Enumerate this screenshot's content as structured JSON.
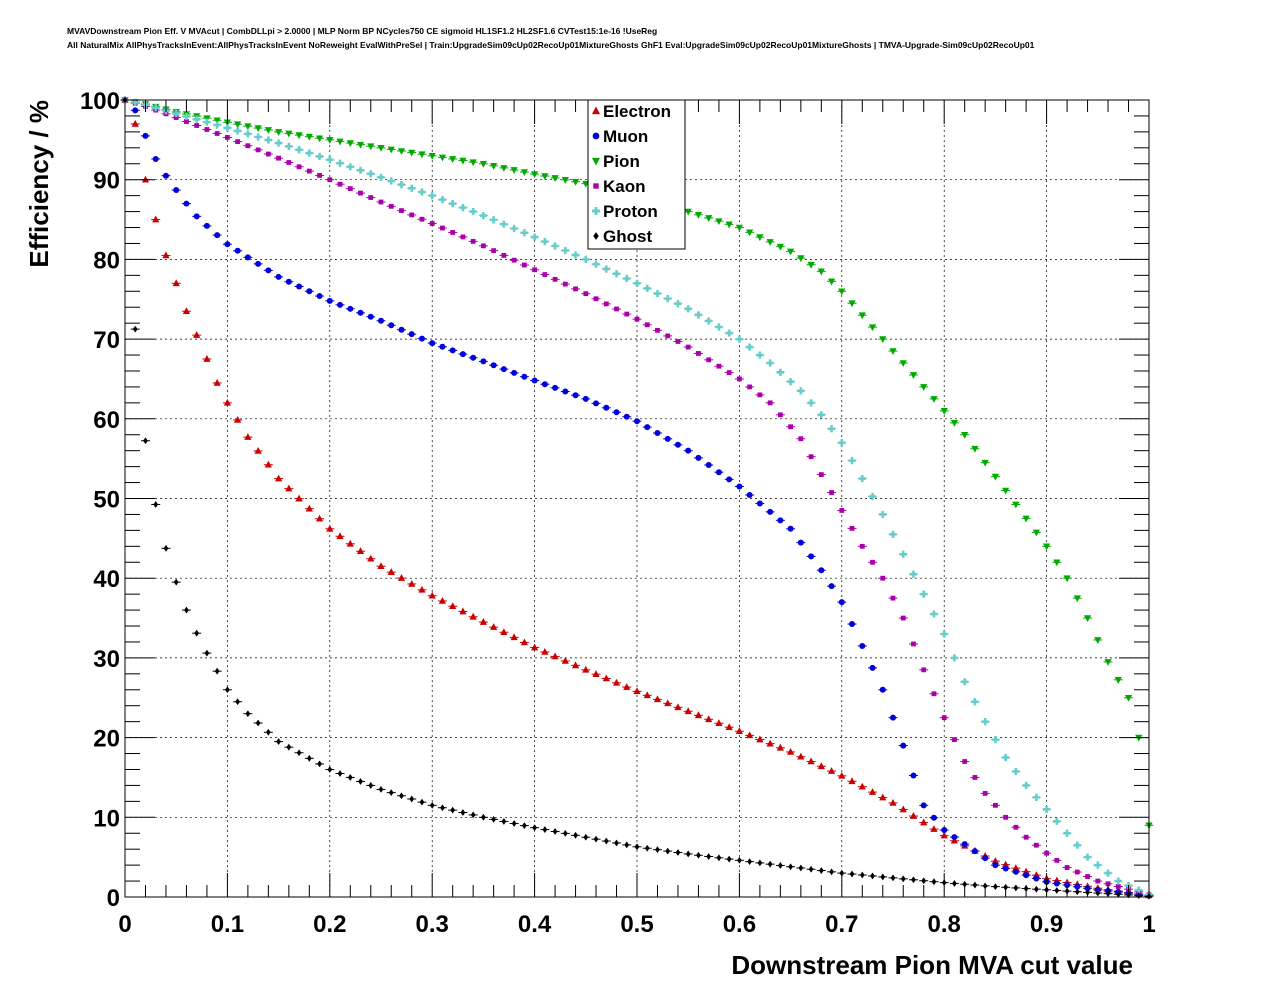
{
  "chart_data": {
    "type": "scatter",
    "header_line1": "MVAVDownstream Pion Eff. V MVAcut | CombDLLpi > 2.0000 | MLP Norm BP NCycles750 CE sigmoid HL1SF1.2 HL2SF1.6 CVTest15:1e-16 !UseReg",
    "header_line2": "All NaturalMix AllPhysTracksInEvent:AllPhysTracksInEvent NoReweight EvalWithPreSel | Train:UpgradeSim09cUp02RecoUp01MixtureGhosts GhF1 Eval:UpgradeSim09cUp02RecoUp01MixtureGhosts | TMVA-Upgrade-Sim09cUp02RecoUp01",
    "xlabel": "Downstream Pion MVA cut value",
    "ylabel": "Efficiency / %",
    "xlim": [
      0,
      1
    ],
    "ylim": [
      0,
      100
    ],
    "xticks": [
      "0",
      "0.1",
      "0.2",
      "0.3",
      "0.4",
      "0.5",
      "0.6",
      "0.7",
      "0.8",
      "0.9",
      "1"
    ],
    "yticks": [
      "0",
      "10",
      "20",
      "30",
      "40",
      "50",
      "60",
      "70",
      "80",
      "90",
      "100"
    ],
    "grid": true,
    "legend_position": "top-center",
    "series": [
      {
        "name": "Electron",
        "color": "#cc0000",
        "marker": "triangle-up",
        "points": [
          [
            0,
            100
          ],
          [
            0.01,
            97
          ],
          [
            0.02,
            90
          ],
          [
            0.03,
            85
          ],
          [
            0.04,
            80.5
          ],
          [
            0.05,
            77
          ],
          [
            0.06,
            73.5
          ],
          [
            0.07,
            70.5
          ],
          [
            0.08,
            67.5
          ],
          [
            0.09,
            64.5
          ],
          [
            0.1,
            62
          ],
          [
            0.12,
            57.7
          ],
          [
            0.15,
            52.5
          ],
          [
            0.2,
            46.2
          ],
          [
            0.25,
            41.5
          ],
          [
            0.3,
            37.8
          ],
          [
            0.35,
            34.5
          ],
          [
            0.4,
            31.3
          ],
          [
            0.45,
            28.5
          ],
          [
            0.5,
            25.8
          ],
          [
            0.55,
            23.3
          ],
          [
            0.6,
            20.8
          ],
          [
            0.65,
            18.2
          ],
          [
            0.7,
            15.2
          ],
          [
            0.75,
            11.8
          ],
          [
            0.8,
            7.7
          ],
          [
            0.85,
            4.5
          ],
          [
            0.9,
            2.3
          ],
          [
            0.95,
            1.1
          ],
          [
            1,
            0.2
          ]
        ]
      },
      {
        "name": "Muon",
        "color": "#0000dd",
        "marker": "circle",
        "points": [
          [
            0,
            100
          ],
          [
            0.01,
            98.7
          ],
          [
            0.02,
            95.5
          ],
          [
            0.03,
            92.6
          ],
          [
            0.04,
            90.5
          ],
          [
            0.05,
            88.7
          ],
          [
            0.06,
            87
          ],
          [
            0.07,
            85.4
          ],
          [
            0.08,
            84.2
          ],
          [
            0.1,
            81.9
          ],
          [
            0.15,
            77.8
          ],
          [
            0.2,
            74.8
          ],
          [
            0.25,
            72.3
          ],
          [
            0.3,
            69.5
          ],
          [
            0.35,
            67.2
          ],
          [
            0.4,
            64.8
          ],
          [
            0.45,
            62.5
          ],
          [
            0.5,
            59.7
          ],
          [
            0.55,
            56
          ],
          [
            0.6,
            51.5
          ],
          [
            0.65,
            46.2
          ],
          [
            0.68,
            41
          ],
          [
            0.7,
            37
          ],
          [
            0.72,
            31.5
          ],
          [
            0.74,
            26
          ],
          [
            0.76,
            19
          ],
          [
            0.78,
            11.5
          ],
          [
            0.8,
            8.4
          ],
          [
            0.85,
            4
          ],
          [
            0.9,
            1.9
          ],
          [
            0.95,
            0.9
          ],
          [
            1,
            0.2
          ]
        ]
      },
      {
        "name": "Pion",
        "color": "#00aa00",
        "marker": "triangle-down",
        "points": [
          [
            0,
            100
          ],
          [
            0.02,
            99.5
          ],
          [
            0.05,
            98.5
          ],
          [
            0.1,
            97.2
          ],
          [
            0.15,
            96
          ],
          [
            0.2,
            95
          ],
          [
            0.25,
            94
          ],
          [
            0.3,
            93
          ],
          [
            0.35,
            92
          ],
          [
            0.4,
            90.7
          ],
          [
            0.45,
            89.5
          ],
          [
            0.5,
            88
          ],
          [
            0.55,
            86
          ],
          [
            0.6,
            84
          ],
          [
            0.65,
            81
          ],
          [
            0.68,
            78.5
          ],
          [
            0.7,
            76
          ],
          [
            0.72,
            73
          ],
          [
            0.74,
            70
          ],
          [
            0.76,
            67
          ],
          [
            0.78,
            64
          ],
          [
            0.8,
            61
          ],
          [
            0.82,
            58
          ],
          [
            0.84,
            54.5
          ],
          [
            0.86,
            51
          ],
          [
            0.88,
            47.5
          ],
          [
            0.9,
            44
          ],
          [
            0.92,
            40
          ],
          [
            0.94,
            35
          ],
          [
            0.96,
            29.5
          ],
          [
            0.98,
            25
          ],
          [
            0.99,
            20
          ],
          [
            1,
            9
          ]
        ]
      },
      {
        "name": "Kaon",
        "color": "#aa00aa",
        "marker": "square",
        "points": [
          [
            0,
            100
          ],
          [
            0.02,
            99.2
          ],
          [
            0.05,
            97.8
          ],
          [
            0.1,
            95.3
          ],
          [
            0.15,
            92.7
          ],
          [
            0.2,
            90
          ],
          [
            0.25,
            87.2
          ],
          [
            0.3,
            84.5
          ],
          [
            0.35,
            81.7
          ],
          [
            0.4,
            78.7
          ],
          [
            0.45,
            75.7
          ],
          [
            0.5,
            72.5
          ],
          [
            0.55,
            69
          ],
          [
            0.6,
            65
          ],
          [
            0.63,
            62
          ],
          [
            0.66,
            57.5
          ],
          [
            0.68,
            53
          ],
          [
            0.7,
            48.5
          ],
          [
            0.72,
            44
          ],
          [
            0.74,
            40
          ],
          [
            0.76,
            35
          ],
          [
            0.78,
            28.5
          ],
          [
            0.8,
            22.5
          ],
          [
            0.82,
            17
          ],
          [
            0.84,
            13
          ],
          [
            0.86,
            10
          ],
          [
            0.88,
            7.5
          ],
          [
            0.9,
            5.5
          ],
          [
            0.92,
            3.7
          ],
          [
            0.95,
            2
          ],
          [
            1,
            0.3
          ]
        ]
      },
      {
        "name": "Proton",
        "color": "#66cccc",
        "marker": "cross",
        "points": [
          [
            0,
            100
          ],
          [
            0.02,
            99.4
          ],
          [
            0.05,
            98.3
          ],
          [
            0.1,
            96.5
          ],
          [
            0.15,
            94.6
          ],
          [
            0.2,
            92.5
          ],
          [
            0.25,
            90.3
          ],
          [
            0.3,
            88
          ],
          [
            0.35,
            85.5
          ],
          [
            0.4,
            82.8
          ],
          [
            0.45,
            80
          ],
          [
            0.5,
            77
          ],
          [
            0.55,
            73.8
          ],
          [
            0.6,
            70
          ],
          [
            0.63,
            67
          ],
          [
            0.66,
            63.5
          ],
          [
            0.68,
            60.5
          ],
          [
            0.7,
            57
          ],
          [
            0.72,
            52.5
          ],
          [
            0.74,
            48
          ],
          [
            0.76,
            43
          ],
          [
            0.78,
            38
          ],
          [
            0.8,
            33
          ],
          [
            0.82,
            27
          ],
          [
            0.84,
            22
          ],
          [
            0.86,
            17.5
          ],
          [
            0.88,
            14
          ],
          [
            0.9,
            11
          ],
          [
            0.92,
            8
          ],
          [
            0.94,
            5
          ],
          [
            0.97,
            2
          ],
          [
            1,
            0.3
          ]
        ]
      },
      {
        "name": "Ghost",
        "color": "#000000",
        "marker": "diamond",
        "points": [
          [
            0,
            100
          ],
          [
            0.005,
            80.5
          ],
          [
            0.015,
            62
          ],
          [
            0.025,
            52.5
          ],
          [
            0.035,
            46
          ],
          [
            0.045,
            41.5
          ],
          [
            0.055,
            37.5
          ],
          [
            0.065,
            34.5
          ],
          [
            0.075,
            31.7
          ],
          [
            0.085,
            29.5
          ],
          [
            0.1,
            26
          ],
          [
            0.12,
            23
          ],
          [
            0.15,
            19.5
          ],
          [
            0.2,
            16
          ],
          [
            0.25,
            13.5
          ],
          [
            0.3,
            11.5
          ],
          [
            0.35,
            10
          ],
          [
            0.4,
            8.7
          ],
          [
            0.45,
            7.5
          ],
          [
            0.5,
            6.3
          ],
          [
            0.55,
            5.4
          ],
          [
            0.6,
            4.6
          ],
          [
            0.65,
            3.8
          ],
          [
            0.7,
            3
          ],
          [
            0.75,
            2.4
          ],
          [
            0.8,
            1.8
          ],
          [
            0.85,
            1.3
          ],
          [
            0.9,
            0.9
          ],
          [
            0.95,
            0.5
          ],
          [
            1,
            0.1
          ]
        ]
      }
    ]
  }
}
